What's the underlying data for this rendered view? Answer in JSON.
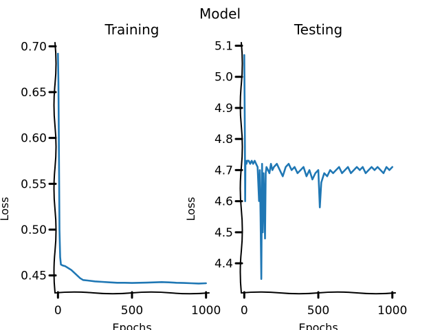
{
  "suptitle": "Model",
  "chart_data": [
    {
      "type": "line",
      "title": "Training",
      "xlabel": "Epochs",
      "ylabel": "Loss",
      "xlim": [
        -20,
        1020
      ],
      "ylim": [
        0.431,
        0.704
      ],
      "xticks": [
        0,
        500,
        1000
      ],
      "xtick_labels": [
        "0",
        "500",
        "1000"
      ],
      "yticks": [
        0.45,
        0.5,
        0.55,
        0.6,
        0.65,
        0.7
      ],
      "ytick_labels": [
        "0.45",
        "0.50",
        "0.55",
        "0.60",
        "0.65",
        "0.70"
      ],
      "grid": false,
      "series": [
        {
          "color": "#1f77b4",
          "x": [
            0,
            3,
            6,
            10,
            15,
            20,
            30,
            50,
            70,
            90,
            110,
            130,
            150,
            170,
            200,
            250,
            300,
            350,
            400,
            450,
            500,
            550,
            600,
            650,
            700,
            750,
            800,
            850,
            900,
            950,
            1000
          ],
          "y": [
            0.692,
            0.66,
            0.6,
            0.5,
            0.47,
            0.462,
            0.461,
            0.46,
            0.458,
            0.456,
            0.453,
            0.45,
            0.447,
            0.445,
            0.4445,
            0.4435,
            0.443,
            0.4425,
            0.442,
            0.442,
            0.4418,
            0.442,
            0.4422,
            0.4425,
            0.4428,
            0.4425,
            0.442,
            0.4418,
            0.4415,
            0.4412,
            0.4415
          ]
        }
      ]
    },
    {
      "type": "line",
      "title": "Testing",
      "xlabel": "Epochs",
      "ylabel": "Loss",
      "xlim": [
        -20,
        1020
      ],
      "ylim": [
        4.305,
        5.11
      ],
      "xticks": [
        0,
        500,
        1000
      ],
      "xtick_labels": [
        "0",
        "500",
        "1000"
      ],
      "yticks": [
        4.4,
        4.5,
        4.6,
        4.7,
        4.8,
        4.9,
        5.0,
        5.1
      ],
      "ytick_labels": [
        "4.4",
        "4.5",
        "4.6",
        "4.7",
        "4.8",
        "4.9",
        "5.0",
        "5.1"
      ],
      "grid": false,
      "series": [
        {
          "color": "#1f77b4",
          "x": [
            0,
            2,
            4,
            6,
            8,
            10,
            15,
            20,
            30,
            40,
            50,
            60,
            70,
            80,
            90,
            100,
            105,
            110,
            115,
            120,
            125,
            130,
            135,
            140,
            145,
            150,
            160,
            170,
            180,
            190,
            200,
            220,
            240,
            260,
            280,
            300,
            320,
            340,
            360,
            380,
            400,
            420,
            440,
            460,
            480,
            500,
            510,
            520,
            540,
            560,
            580,
            600,
            620,
            640,
            660,
            680,
            700,
            720,
            740,
            760,
            780,
            800,
            820,
            840,
            860,
            880,
            900,
            920,
            940,
            960,
            980,
            1000
          ],
          "y": [
            5.07,
            4.95,
            4.8,
            4.6,
            4.72,
            4.73,
            4.72,
            4.73,
            4.73,
            4.72,
            4.73,
            4.72,
            4.73,
            4.72,
            4.71,
            4.6,
            4.7,
            4.55,
            4.35,
            4.72,
            4.5,
            4.69,
            4.6,
            4.48,
            4.69,
            4.71,
            4.7,
            4.69,
            4.72,
            4.7,
            4.71,
            4.72,
            4.7,
            4.68,
            4.71,
            4.72,
            4.7,
            4.71,
            4.69,
            4.7,
            4.71,
            4.68,
            4.7,
            4.67,
            4.69,
            4.7,
            4.58,
            4.66,
            4.69,
            4.68,
            4.7,
            4.69,
            4.7,
            4.71,
            4.69,
            4.7,
            4.71,
            4.69,
            4.7,
            4.71,
            4.7,
            4.71,
            4.69,
            4.7,
            4.71,
            4.7,
            4.71,
            4.7,
            4.69,
            4.71,
            4.7,
            4.71
          ]
        }
      ]
    }
  ]
}
